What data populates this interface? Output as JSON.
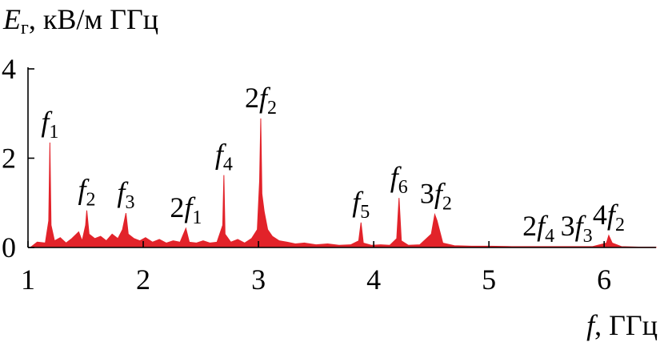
{
  "chart_data": {
    "type": "area",
    "color": "#e2232a",
    "ylabel": {
      "var": "E",
      "sub": "г",
      "rest": ", кВ/м ГГц"
    },
    "xlabel": {
      "var": "f",
      "rest": ", ГГц"
    },
    "xlim": [
      1,
      6.45
    ],
    "ylim": [
      0,
      4
    ],
    "xticks": [
      1,
      2,
      3,
      4,
      5,
      6
    ],
    "yticks": [
      0,
      2,
      4
    ],
    "x": [
      1.02,
      1.08,
      1.15,
      1.18,
      1.19,
      1.2,
      1.23,
      1.28,
      1.33,
      1.38,
      1.44,
      1.47,
      1.5,
      1.51,
      1.53,
      1.58,
      1.63,
      1.68,
      1.73,
      1.78,
      1.82,
      1.85,
      1.87,
      1.92,
      1.97,
      2.02,
      2.08,
      2.14,
      2.2,
      2.26,
      2.32,
      2.37,
      2.4,
      2.46,
      2.52,
      2.58,
      2.64,
      2.69,
      2.7,
      2.71,
      2.76,
      2.82,
      2.88,
      2.94,
      2.99,
      3.01,
      3.02,
      3.03,
      3.05,
      3.08,
      3.12,
      3.18,
      3.25,
      3.32,
      3.4,
      3.5,
      3.6,
      3.7,
      3.8,
      3.87,
      3.89,
      3.91,
      3.98,
      4.06,
      4.14,
      4.2,
      4.22,
      4.24,
      4.3,
      4.4,
      4.5,
      4.53,
      4.55,
      4.57,
      4.6,
      4.7,
      4.85,
      5.0,
      5.2,
      5.4,
      5.6,
      5.78,
      5.9,
      6.02,
      6.04,
      6.07,
      6.15,
      6.3,
      6.45
    ],
    "values": [
      0.0,
      0.12,
      0.1,
      0.6,
      2.35,
      0.5,
      0.15,
      0.22,
      0.1,
      0.2,
      0.35,
      0.15,
      0.5,
      0.83,
      0.3,
      0.2,
      0.25,
      0.15,
      0.3,
      0.2,
      0.4,
      0.77,
      0.3,
      0.2,
      0.15,
      0.22,
      0.12,
      0.18,
      0.1,
      0.15,
      0.12,
      0.43,
      0.12,
      0.1,
      0.15,
      0.1,
      0.12,
      0.5,
      1.62,
      0.3,
      0.12,
      0.18,
      0.1,
      0.2,
      0.4,
      1.5,
      2.89,
      1.2,
      0.8,
      0.4,
      0.25,
      0.15,
      0.12,
      0.08,
      0.1,
      0.06,
      0.08,
      0.05,
      0.06,
      0.15,
      0.56,
      0.1,
      0.05,
      0.06,
      0.05,
      0.2,
      1.11,
      0.15,
      0.05,
      0.06,
      0.3,
      0.74,
      0.6,
      0.4,
      0.1,
      0.04,
      0.03,
      0.03,
      0.02,
      0.02,
      0.02,
      0.02,
      0.02,
      0.1,
      0.27,
      0.1,
      0.02,
      0.01,
      0.01
    ],
    "annotations": [
      {
        "var": "f",
        "sub": "1",
        "x": 1.19,
        "y": 2.35
      },
      {
        "var": "f",
        "sub": "2",
        "x": 1.51,
        "y": 0.83
      },
      {
        "var": "f",
        "sub": "3",
        "x": 1.85,
        "y": 0.77
      },
      {
        "prefix": "2",
        "var": "f",
        "sub": "1",
        "x": 2.37,
        "y": 0.43
      },
      {
        "var": "f",
        "sub": "4",
        "x": 2.7,
        "y": 1.62
      },
      {
        "prefix": "2",
        "var": "f",
        "sub": "2",
        "x": 3.02,
        "y": 2.89
      },
      {
        "var": "f",
        "sub": "5",
        "x": 3.89,
        "y": 0.56
      },
      {
        "var": "f",
        "sub": "6",
        "x": 4.22,
        "y": 1.11
      },
      {
        "prefix": "3",
        "var": "f",
        "sub": "2",
        "x": 4.54,
        "y": 0.74
      },
      {
        "prefix": "2",
        "var": "f",
        "sub": "4",
        "x": 5.43,
        "y": 0.02
      },
      {
        "prefix": "3",
        "var": "f",
        "sub": "3",
        "x": 5.76,
        "y": 0.02
      },
      {
        "prefix": "4",
        "var": "f",
        "sub": "2",
        "x": 6.04,
        "y": 0.27
      }
    ]
  }
}
